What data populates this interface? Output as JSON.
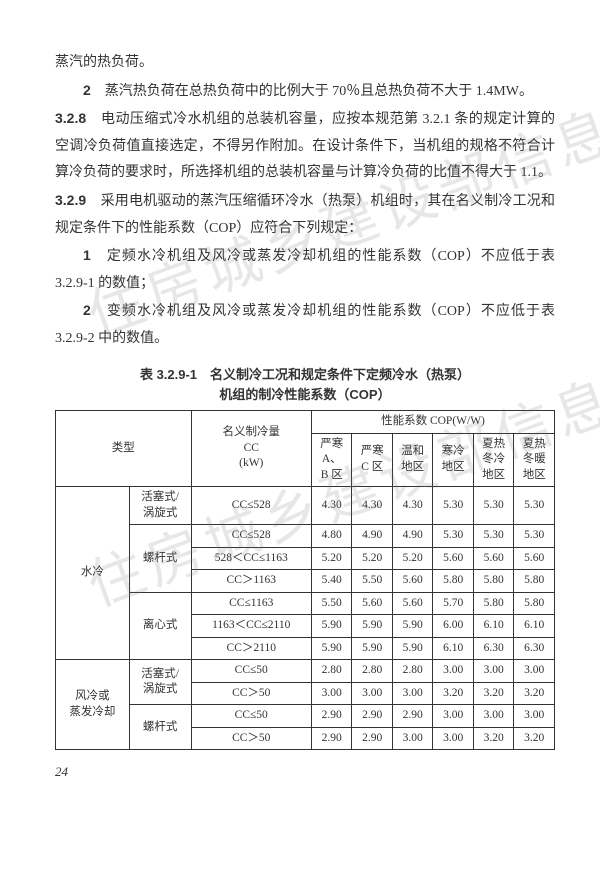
{
  "paragraphs": {
    "p1": "蒸汽的热负荷。",
    "p2_num": "2",
    "p2": "蒸汽热负荷在总热负荷中的比例大于 70％且总热负荷不大于 1.4MW。",
    "p3_head": "3.2.8",
    "p3": "电动压缩式冷水机组的总装机容量，应按本规范第 3.2.1 条的规定计算的空调冷负荷值直接选定，不得另作附加。在设计条件下，当机组的规格不符合计算冷负荷的要求时，所选择机组的总装机容量与计算冷负荷的比值不得大于 1.1。",
    "p4_head": "3.2.9",
    "p4": "采用电机驱动的蒸汽压缩循环冷水（热泵）机组时，其在名义制冷工况和规定条件下的性能系数（COP）应符合下列规定：",
    "p5_num": "1",
    "p5": "定频水冷机组及风冷或蒸发冷却机组的性能系数（COP）不应低于表 3.2.9-1 的数值；",
    "p6_num": "2",
    "p6": "变频水冷机组及风冷或蒸发冷却机组的性能系数（COP）不应低于表 3.2.9-2 中的数值。"
  },
  "table_title_l1": "表 3.2.9-1　名义制冷工况和规定条件下定频冷水（热泵）",
  "table_title_l2": "机组的制冷性能系数（COP）",
  "table": {
    "head": {
      "type": "类型",
      "cc_label": "名义制冷量\nCC\n(kW)",
      "cop_label": "性能系数 COP(W/W)",
      "regions": [
        "严寒\nA、\nB 区",
        "严寒\nC 区",
        "温和\n地区",
        "寒冷\n地区",
        "夏热\n冬冷\n地区",
        "夏热\n冬暖\n地区"
      ]
    },
    "groups": [
      {
        "cooling": "水冷",
        "subs": [
          {
            "name": "活塞式/\n涡旋式",
            "rows": [
              {
                "cc": "CC≤528",
                "v": [
                  "4.30",
                  "4.30",
                  "4.30",
                  "5.30",
                  "5.30",
                  "5.30"
                ]
              }
            ]
          },
          {
            "name": "螺杆式",
            "rows": [
              {
                "cc": "CC≤528",
                "v": [
                  "4.80",
                  "4.90",
                  "4.90",
                  "5.30",
                  "5.30",
                  "5.30"
                ]
              },
              {
                "cc": "528＜CC≤1163",
                "v": [
                  "5.20",
                  "5.20",
                  "5.20",
                  "5.60",
                  "5.60",
                  "5.60"
                ]
              },
              {
                "cc": "CC＞1163",
                "v": [
                  "5.40",
                  "5.50",
                  "5.60",
                  "5.80",
                  "5.80",
                  "5.80"
                ]
              }
            ]
          },
          {
            "name": "离心式",
            "rows": [
              {
                "cc": "CC≤1163",
                "v": [
                  "5.50",
                  "5.60",
                  "5.60",
                  "5.70",
                  "5.80",
                  "5.80"
                ]
              },
              {
                "cc": "1163＜CC≤2110",
                "v": [
                  "5.90",
                  "5.90",
                  "5.90",
                  "6.00",
                  "6.10",
                  "6.10"
                ]
              },
              {
                "cc": "CC＞2110",
                "v": [
                  "5.90",
                  "5.90",
                  "5.90",
                  "6.10",
                  "6.30",
                  "6.30"
                ]
              }
            ]
          }
        ]
      },
      {
        "cooling": "风冷或\n蒸发冷却",
        "subs": [
          {
            "name": "活塞式/\n涡旋式",
            "rows": [
              {
                "cc": "CC≤50",
                "v": [
                  "2.80",
                  "2.80",
                  "2.80",
                  "3.00",
                  "3.00",
                  "3.00"
                ]
              },
              {
                "cc": "CC＞50",
                "v": [
                  "3.00",
                  "3.00",
                  "3.00",
                  "3.20",
                  "3.20",
                  "3.20"
                ]
              }
            ]
          },
          {
            "name": "螺杆式",
            "rows": [
              {
                "cc": "CC≤50",
                "v": [
                  "2.90",
                  "2.90",
                  "2.90",
                  "3.00",
                  "3.00",
                  "3.00"
                ]
              },
              {
                "cc": "CC＞50",
                "v": [
                  "2.90",
                  "2.90",
                  "3.00",
                  "3.00",
                  "3.20",
                  "3.20"
                ]
              }
            ]
          }
        ]
      }
    ]
  },
  "page_number": "24",
  "watermark": "住房城乡建设部信息公开"
}
